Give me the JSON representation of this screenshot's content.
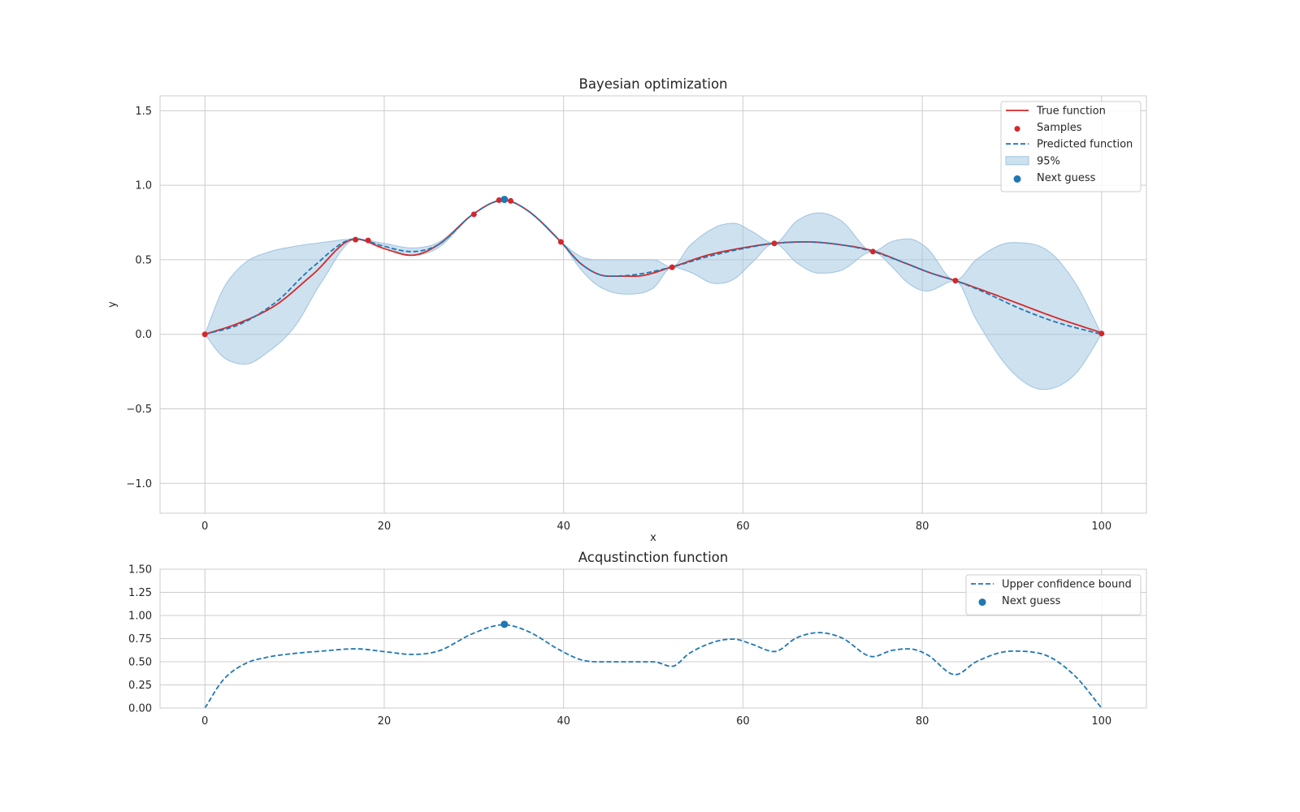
{
  "colors": {
    "true_function": "#d62728",
    "samples": "#d62728",
    "predicted": "#1f77b4",
    "band_fill": "#9ec3e0",
    "next_guess": "#1f77b4",
    "grid": "#cccccc",
    "frame": "#cccccc",
    "background": "#ffffff"
  },
  "chart_data": [
    {
      "type": "line",
      "title": "Bayesian optimization",
      "xlabel": "x",
      "ylabel": "y",
      "xlim": [
        -5,
        105
      ],
      "ylim": [
        -1.2,
        1.6
      ],
      "xticks": [
        0,
        20,
        40,
        60,
        80,
        100
      ],
      "yticks": [
        -1.0,
        -0.5,
        0.0,
        0.5,
        1.0,
        1.5
      ],
      "xtick_labels": [
        "0",
        "20",
        "40",
        "60",
        "80",
        "100"
      ],
      "ytick_labels": [
        "−1.0",
        "−0.5",
        "0.0",
        "0.5",
        "1.0",
        "1.5"
      ],
      "grid": true,
      "legend_position": "top-right",
      "legend": [
        "True function",
        "Samples",
        "Predicted function",
        "95%",
        "Next guess"
      ],
      "series": [
        {
          "name": "True function",
          "style": "solid",
          "x": [
            0,
            4,
            8,
            12,
            16.8,
            20,
            23,
            26,
            30,
            33.3,
            36,
            39.7,
            42,
            45,
            48,
            52,
            56,
            60,
            63.5,
            67,
            71,
            74.5,
            78,
            81,
            83.7,
            87,
            91,
            95,
            100
          ],
          "y": [
            0.0,
            0.08,
            0.2,
            0.4,
            0.64,
            0.575,
            0.53,
            0.6,
            0.81,
            0.9,
            0.83,
            0.62,
            0.47,
            0.39,
            0.39,
            0.45,
            0.53,
            0.58,
            0.61,
            0.62,
            0.6,
            0.56,
            0.48,
            0.41,
            0.36,
            0.29,
            0.2,
            0.11,
            0.01
          ]
        },
        {
          "name": "Samples",
          "style": "scatter",
          "x": [
            0,
            16.8,
            18.2,
            30,
            32.8,
            34.1,
            39.7,
            52.1,
            63.5,
            74.5,
            83.7,
            100
          ],
          "y": [
            0.0,
            0.635,
            0.63,
            0.805,
            0.9,
            0.895,
            0.62,
            0.45,
            0.61,
            0.555,
            0.36,
            0.005
          ]
        },
        {
          "name": "Predicted function",
          "style": "dashed",
          "x": [
            0,
            4,
            8,
            12,
            16.8,
            20,
            23,
            26,
            30,
            33.3,
            36,
            39.7,
            42,
            45,
            48,
            52,
            56,
            60,
            63.5,
            67,
            71,
            74.5,
            78,
            81,
            83.7,
            87,
            91,
            95,
            100
          ],
          "y": [
            0.0,
            0.07,
            0.22,
            0.45,
            0.64,
            0.59,
            0.555,
            0.6,
            0.81,
            0.9,
            0.83,
            0.62,
            0.47,
            0.39,
            0.4,
            0.45,
            0.52,
            0.575,
            0.61,
            0.62,
            0.6,
            0.555,
            0.48,
            0.41,
            0.36,
            0.28,
            0.17,
            0.08,
            0.0
          ]
        },
        {
          "name": "95%",
          "style": "band",
          "x": [
            0,
            2,
            4.5,
            7,
            10,
            13,
            16.8,
            20,
            23,
            26,
            30,
            33.3,
            36,
            39.7,
            42,
            44,
            47,
            50,
            52.1,
            54,
            57,
            59,
            61,
            63.5,
            66,
            68.5,
            71,
            74.5,
            76.5,
            78.5,
            80.5,
            83.7,
            86,
            90,
            93.5,
            97,
            100
          ],
          "upper": [
            0.0,
            0.3,
            0.48,
            0.55,
            0.59,
            0.615,
            0.64,
            0.61,
            0.58,
            0.615,
            0.81,
            0.9,
            0.83,
            0.62,
            0.52,
            0.5,
            0.5,
            0.5,
            0.45,
            0.59,
            0.72,
            0.745,
            0.69,
            0.61,
            0.76,
            0.815,
            0.76,
            0.555,
            0.62,
            0.64,
            0.58,
            0.36,
            0.5,
            0.615,
            0.58,
            0.35,
            0.0
          ],
          "lower": [
            0.0,
            -0.15,
            -0.2,
            -0.12,
            0.05,
            0.35,
            0.635,
            0.59,
            0.53,
            0.58,
            0.81,
            0.9,
            0.83,
            0.62,
            0.43,
            0.32,
            0.27,
            0.31,
            0.45,
            0.42,
            0.34,
            0.37,
            0.48,
            0.61,
            0.48,
            0.41,
            0.43,
            0.555,
            0.46,
            0.34,
            0.29,
            0.36,
            0.1,
            -0.25,
            -0.37,
            -0.27,
            0.0
          ]
        },
        {
          "name": "Next guess",
          "style": "scatter",
          "x": [
            33.4
          ],
          "y": [
            0.905
          ]
        }
      ]
    },
    {
      "type": "line",
      "title": "Acqustinction function",
      "xlabel": "",
      "ylabel": "",
      "xlim": [
        -5,
        105
      ],
      "ylim": [
        0.0,
        1.5
      ],
      "xticks": [
        0,
        20,
        40,
        60,
        80,
        100
      ],
      "yticks": [
        0.0,
        0.25,
        0.5,
        0.75,
        1.0,
        1.25,
        1.5
      ],
      "xtick_labels": [
        "0",
        "20",
        "40",
        "60",
        "80",
        "100"
      ],
      "ytick_labels": [
        "0.00",
        "0.25",
        "0.50",
        "0.75",
        "1.00",
        "1.25",
        "1.50"
      ],
      "grid": true,
      "legend_position": "top-right",
      "legend": [
        "Upper confidence bound",
        "Next guess"
      ],
      "series": [
        {
          "name": "Upper confidence bound",
          "style": "dashed",
          "x": [
            0,
            2,
            4.5,
            7,
            10,
            13,
            16.8,
            20,
            23,
            26,
            30,
            33.3,
            36,
            39.7,
            42,
            44,
            47,
            50,
            52.1,
            54,
            57,
            59,
            61,
            63.5,
            66,
            68.5,
            71,
            74.5,
            76.5,
            78.5,
            80.5,
            83.7,
            86,
            90,
            93.5,
            97,
            100
          ],
          "y": [
            0.0,
            0.3,
            0.48,
            0.55,
            0.59,
            0.615,
            0.64,
            0.61,
            0.58,
            0.615,
            0.81,
            0.9,
            0.83,
            0.62,
            0.52,
            0.5,
            0.5,
            0.5,
            0.45,
            0.59,
            0.72,
            0.745,
            0.69,
            0.61,
            0.76,
            0.815,
            0.76,
            0.555,
            0.62,
            0.64,
            0.58,
            0.36,
            0.5,
            0.615,
            0.58,
            0.35,
            0.0
          ]
        },
        {
          "name": "Next guess",
          "style": "scatter",
          "x": [
            33.4
          ],
          "y": [
            0.905
          ]
        }
      ]
    }
  ]
}
